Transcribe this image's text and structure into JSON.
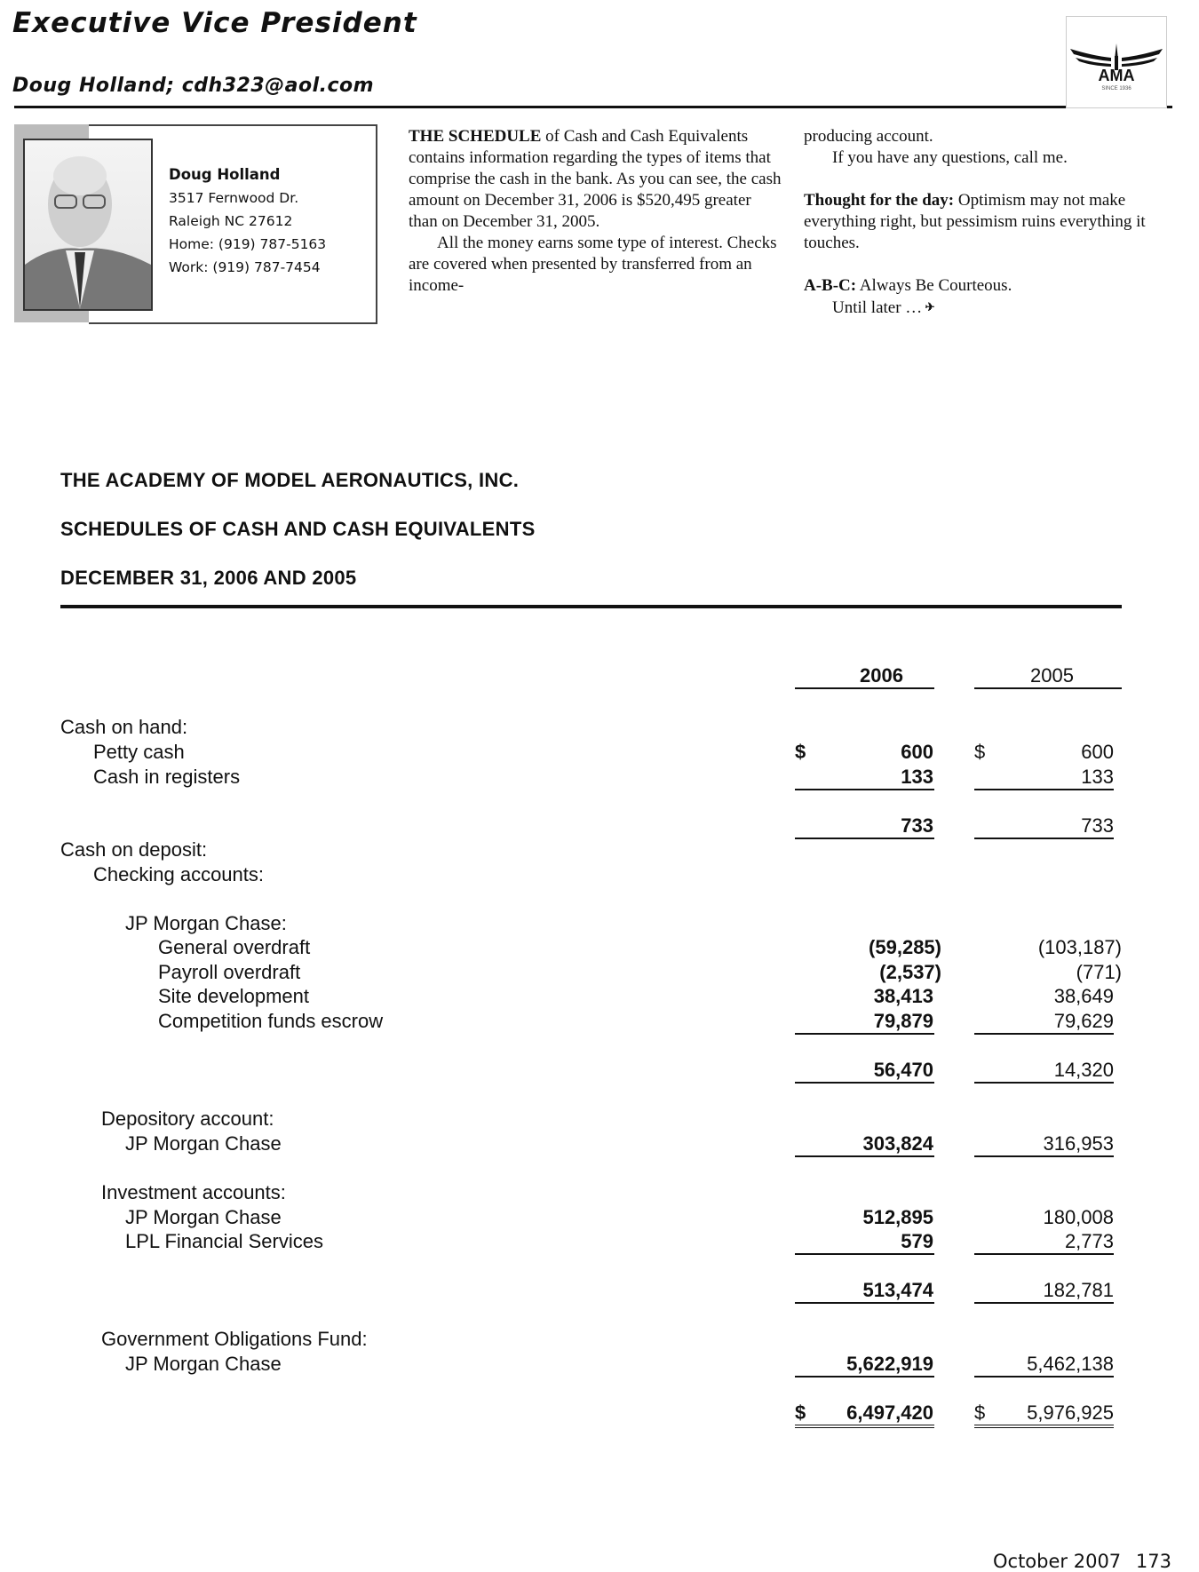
{
  "header": {
    "title": "Executive Vice President",
    "subtitle": "Doug Holland; cdh323@aol.com",
    "logo_text": "AMA",
    "logo_subtext": "SINCE 1936"
  },
  "contact": {
    "name": "Doug Holland",
    "address": "3517 Fernwood Dr.",
    "city": "Raleigh NC 27612",
    "home": "Home: (919) 787-5163",
    "work": "Work: (919) 787-7454"
  },
  "column1": {
    "p1_lead": "THE SCHEDULE",
    "p1_text": " of Cash and Cash Equivalents contains information regarding the types of items that comprise the cash in the bank. As you can see, the cash amount on December 31, 2006 is $520,495 greater than on December 31, 2005.",
    "p2_text": "All the money earns some type of interest. Checks are covered when presented by transferred from an income-"
  },
  "column2": {
    "p1_text": "producing account.",
    "p2_text": "If you have any questions, call me.",
    "thought_lead": "Thought for the day:",
    "thought_text": " Optimism may not make everything right, but pessimism ruins everything it touches.",
    "abc_lead": "A-B-C:",
    "abc_text": " Always Be Courteous.",
    "signoff": "Until later …"
  },
  "schedule": {
    "org": "THE ACADEMY OF MODEL AERONAUTICS, INC.",
    "title": "SCHEDULES OF CASH AND CASH EQUIVALENTS",
    "date": "DECEMBER 31, 2006 AND 2005",
    "col_2006": "2006",
    "col_2005": "2005",
    "rows": [
      {
        "label": "Cash on hand:",
        "indent": 0
      },
      {
        "label": "Petty cash",
        "indent": 1,
        "v2006": "600",
        "v2005": "600",
        "dollar": "$"
      },
      {
        "label": "Cash in registers",
        "indent": 1,
        "v2006": "133",
        "v2005": "133",
        "underline": true
      },
      {
        "label": "",
        "indent": 0,
        "v2006": "733",
        "v2005": "733",
        "underline": true
      },
      {
        "label": "Cash on deposit:",
        "indent": 0
      },
      {
        "label": "Checking accounts:",
        "indent": 1
      },
      {
        "label": "JP Morgan Chase:",
        "indent": 2
      },
      {
        "label": "General overdraft",
        "indent": 3,
        "v2006": "(59,285)",
        "v2005": "(103,187)",
        "paren": true
      },
      {
        "label": "Payroll overdraft",
        "indent": 3,
        "v2006": "(2,537)",
        "v2005": "(771)",
        "paren": true
      },
      {
        "label": "Site development",
        "indent": 3,
        "v2006": "38,413",
        "v2005": "38,649"
      },
      {
        "label": "Competition funds escrow",
        "indent": 3,
        "v2006": "79,879",
        "v2005": "79,629",
        "underline": true
      },
      {
        "label": "",
        "indent": 0,
        "v2006": "56,470",
        "v2005": "14,320",
        "underline": true
      },
      {
        "label": "Depository account:",
        "indent": 1.2
      },
      {
        "label": "JP Morgan Chase",
        "indent": 2
      },
      {
        "label": "",
        "indent": 0,
        "v2006": "303,824",
        "v2005": "316,953",
        "underline": true,
        "inline_prev": true
      },
      {
        "label": "Investment accounts:",
        "indent": 1.2
      },
      {
        "label": "JP Morgan Chase",
        "indent": 2,
        "v2006": "512,895",
        "v2005": "180,008"
      },
      {
        "label": "LPL Financial Services",
        "indent": 2,
        "v2006": "579",
        "v2005": "2,773",
        "underline": true
      },
      {
        "label": "",
        "indent": 0,
        "v2006": "513,474",
        "v2005": "182,781",
        "underline": true
      },
      {
        "label": "Government Obligations Fund:",
        "indent": 1.2
      },
      {
        "label": "JP Morgan Chase",
        "indent": 2,
        "v2006": "5,622,919",
        "v2005": "5,462,138",
        "underline": true
      },
      {
        "label": "",
        "indent": 0,
        "v2006": "6,497,420",
        "v2005": "5,976,925",
        "dollar": "$",
        "total": true
      }
    ]
  },
  "footer": {
    "issue": "October 2007",
    "page": "173"
  }
}
